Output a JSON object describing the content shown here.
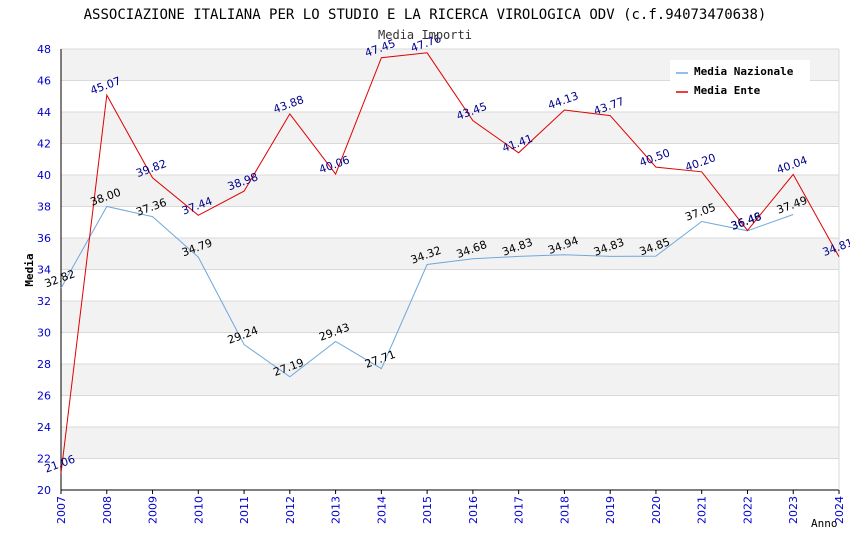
{
  "chart_data": {
    "type": "line",
    "title": "ASSOCIAZIONE ITALIANA PER LO STUDIO E LA RICERCA VIROLOGICA ODV (c.f.94073470638)",
    "subtitle": "Media Importi",
    "xlabel": "Anno",
    "ylabel": "Media",
    "ylim": [
      20,
      48
    ],
    "yticks": [
      "20",
      "22",
      "24",
      "26",
      "28",
      "30",
      "32",
      "34",
      "36",
      "38",
      "40",
      "42",
      "44",
      "46",
      "48"
    ],
    "x": [
      "2007",
      "2008",
      "2009",
      "2010",
      "2011",
      "2012",
      "2013",
      "2014",
      "2015",
      "2016",
      "2017",
      "2018",
      "2019",
      "2020",
      "2021",
      "2022",
      "2023",
      "2024"
    ],
    "grid": true,
    "legend_position": "top-right",
    "series": [
      {
        "name": "Media Nazionale",
        "color": "#6fa8dc",
        "label_color": "#000000",
        "values": [
          32.82,
          38.0,
          37.36,
          34.79,
          29.24,
          27.19,
          29.43,
          27.71,
          34.32,
          34.68,
          34.83,
          34.94,
          34.83,
          34.85,
          37.05,
          36.46,
          37.49,
          null
        ],
        "labels": [
          "32.82",
          "38.00",
          "37.36",
          "34.79",
          "29.24",
          "27.19",
          "29.43",
          "27.71",
          "34.32",
          "34.68",
          "34.83",
          "34.94",
          "34.83",
          "34.85",
          "37.05",
          "36.46",
          "37.49",
          ""
        ]
      },
      {
        "name": "Media Ente",
        "color": "#e00000",
        "label_color": "#00008b",
        "values": [
          21.06,
          45.07,
          39.82,
          37.44,
          38.98,
          43.88,
          40.06,
          47.45,
          47.76,
          43.45,
          41.41,
          44.13,
          43.77,
          40.5,
          40.2,
          36.48,
          40.04,
          34.81
        ],
        "labels": [
          "21.06",
          "45.07",
          "39.82",
          "37.44",
          "38.98",
          "43.88",
          "40.06",
          "47.45",
          "47.76",
          "43.45",
          "41.41",
          "44.13",
          "43.77",
          "40.50",
          "40.20",
          "36.48",
          "40.04",
          "34.81"
        ]
      }
    ]
  },
  "colors": {
    "tick_label": "#0000cc",
    "band": "#f2f2f2",
    "grid": "#d9d9d9",
    "axis": "#000000"
  }
}
